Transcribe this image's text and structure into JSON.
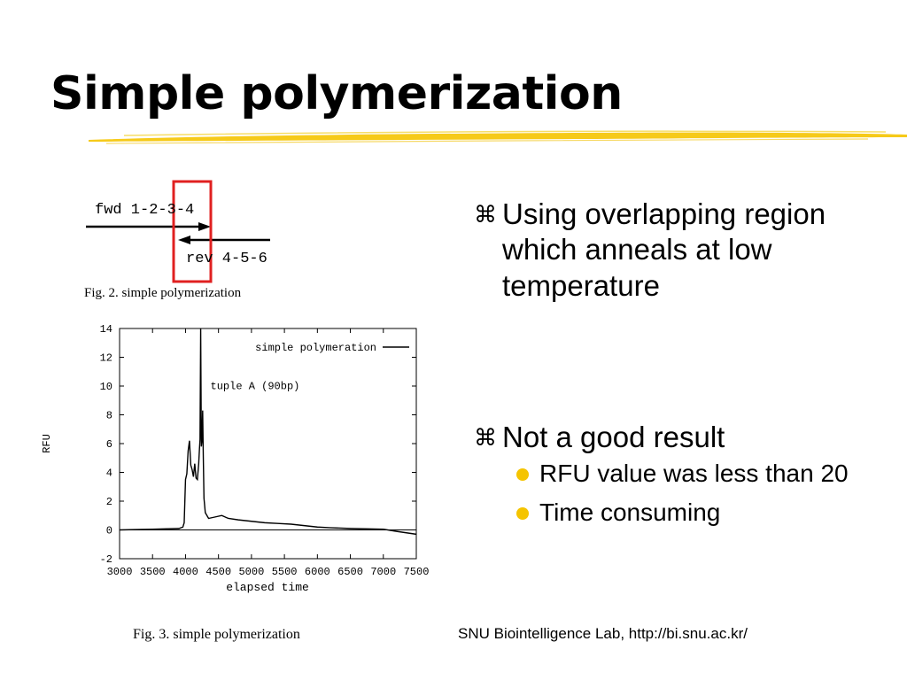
{
  "slide": {
    "title": "Simple polymerization",
    "accent_color": "#f5c400",
    "footer": "SNU Biointelligence Lab, http://bi.snu.ac.kr/"
  },
  "figure2": {
    "fwd_label": "fwd 1-2-3-4",
    "rev_label": "rev 4-5-6",
    "highlight_color": "#e02020",
    "caption": "Fig. 2.   simple polymerization"
  },
  "figure3": {
    "caption": "Fig. 3.   simple polymerization"
  },
  "bullets": [
    {
      "symbol": "⌘",
      "text": "Using overlapping region which anneals at low temperature",
      "children": []
    },
    {
      "symbol": "⌘",
      "text": "Not a good result",
      "children": [
        {
          "text": "RFU value was less than 20"
        },
        {
          "text": "Time consuming"
        }
      ]
    }
  ],
  "chart_data": {
    "type": "line",
    "title": "",
    "xlabel": "elapsed time",
    "ylabel": "RFU",
    "xlim": [
      3000,
      7500
    ],
    "ylim": [
      -2,
      14
    ],
    "xticks": [
      3000,
      3500,
      4000,
      4500,
      5000,
      5500,
      6000,
      6500,
      7000,
      7500
    ],
    "yticks": [
      -2,
      0,
      2,
      4,
      6,
      8,
      10,
      12,
      14
    ],
    "grid": false,
    "legend": "top-right",
    "annotation": {
      "text": "tuple A (90bp)",
      "x": 4270,
      "y": 9.8
    },
    "series": [
      {
        "name": "simple polymeration",
        "x": [
          3000,
          3500,
          3900,
          3960,
          3980,
          4000,
          4020,
          4040,
          4060,
          4080,
          4100,
          4120,
          4140,
          4160,
          4180,
          4200,
          4210,
          4220,
          4230,
          4240,
          4250,
          4260,
          4270,
          4280,
          4300,
          4350,
          4450,
          4550,
          4650,
          4800,
          5000,
          5200,
          5400,
          5600,
          5800,
          6000,
          6200,
          6500,
          7000,
          7200,
          7500
        ],
        "y": [
          0.0,
          0.05,
          0.1,
          0.2,
          0.5,
          3.5,
          3.9,
          5.5,
          6.2,
          4.5,
          4.2,
          3.7,
          4.6,
          3.6,
          3.5,
          4.6,
          5.5,
          6.3,
          14.0,
          5.8,
          6.2,
          8.3,
          5.0,
          2.2,
          1.2,
          0.8,
          0.9,
          1.0,
          0.8,
          0.7,
          0.6,
          0.5,
          0.45,
          0.4,
          0.3,
          0.2,
          0.15,
          0.1,
          0.05,
          -0.1,
          -0.3
        ]
      }
    ]
  }
}
